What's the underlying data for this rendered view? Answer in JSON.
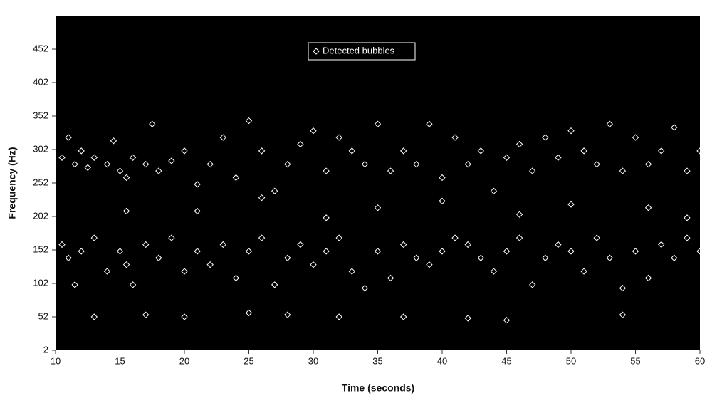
{
  "chart_data": {
    "type": "scatter",
    "x_label": "Time (seconds)",
    "y_label": "Frequency (Hz)",
    "xlim": [
      10,
      60
    ],
    "xticks": [
      10,
      15,
      20,
      25,
      30,
      35,
      40,
      45,
      50,
      55,
      60
    ],
    "ylim": [
      2,
      502
    ],
    "yticks": [
      2,
      52,
      102,
      152,
      202,
      252,
      302,
      352,
      402,
      452
    ],
    "x": [
      10.5,
      11,
      11.5,
      12,
      12.5,
      13,
      14,
      14.5,
      15,
      15.5,
      16,
      17,
      17.5,
      18,
      19,
      20,
      21,
      22,
      23,
      24,
      25,
      26,
      27,
      28,
      29,
      30,
      31,
      32,
      33,
      34,
      35,
      36,
      37,
      38,
      39,
      40,
      41,
      42,
      43,
      44,
      45,
      46,
      47,
      48,
      49,
      50,
      51,
      52,
      53,
      54,
      55,
      56,
      57,
      58,
      59,
      60,
      10.5,
      11,
      11.5,
      12,
      13,
      14,
      15,
      15.5,
      16,
      17,
      18,
      19,
      20,
      21,
      22,
      23,
      24,
      25,
      26,
      27,
      28,
      29,
      30,
      31,
      32,
      33,
      34,
      35,
      36,
      37,
      38,
      39,
      40,
      41,
      42,
      43,
      44,
      45,
      46,
      47,
      48,
      49,
      50,
      51,
      52,
      53,
      54,
      55,
      56,
      57,
      58,
      59,
      60,
      13,
      17,
      20,
      25,
      28,
      32,
      37,
      42,
      45,
      54,
      15.5,
      21,
      26,
      31,
      35,
      40,
      46,
      50,
      56,
      59
    ],
    "series": [
      {
        "name": "Detected bubbles",
        "color": "#ffffff",
        "values": [
          290,
          320,
          280,
          300,
          275,
          290,
          280,
          315,
          270,
          260,
          290,
          280,
          340,
          270,
          285,
          300,
          250,
          280,
          320,
          260,
          345,
          300,
          240,
          280,
          310,
          330,
          270,
          320,
          300,
          280,
          340,
          270,
          300,
          280,
          340,
          260,
          320,
          280,
          300,
          240,
          290,
          310,
          270,
          320,
          290,
          330,
          300,
          280,
          340,
          270,
          320,
          280,
          300,
          335,
          270,
          300,
          160,
          140,
          100,
          150,
          170,
          120,
          150,
          130,
          100,
          160,
          140,
          170,
          120,
          150,
          130,
          160,
          110,
          150,
          170,
          100,
          140,
          160,
          130,
          150,
          170,
          120,
          95,
          150,
          110,
          160,
          140,
          130,
          150,
          170,
          160,
          140,
          120,
          150,
          170,
          100,
          140,
          160,
          150,
          120,
          170,
          140,
          95,
          150,
          110,
          160,
          140,
          170,
          150,
          52,
          55,
          52,
          58,
          55,
          52,
          52,
          50,
          47,
          55,
          210,
          210,
          230,
          200,
          215,
          225,
          205,
          220,
          215,
          200
        ]
      }
    ],
    "plot_background": "#000000"
  }
}
